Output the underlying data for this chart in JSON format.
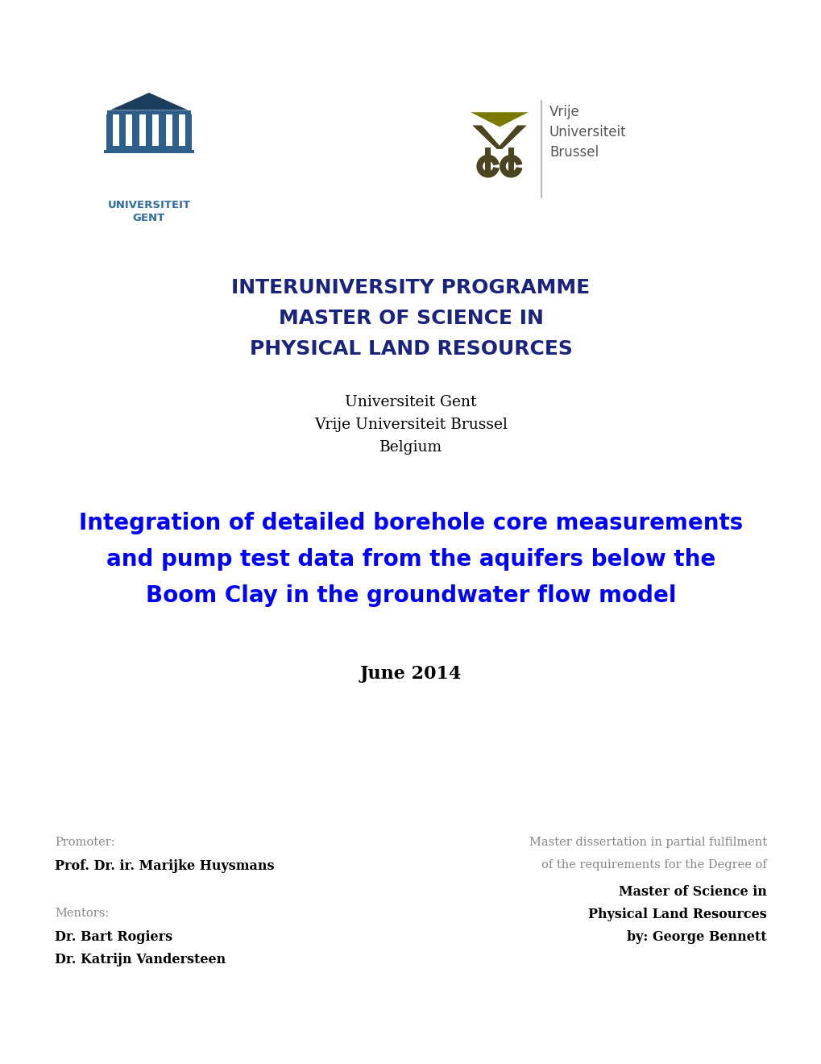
{
  "background_color": "#ffffff",
  "programme_line1": "INTERUNIVERSITY PROGRAMME",
  "programme_line2": "MASTER OF SCIENCE IN",
  "programme_line3": "PHYSICAL LAND RESOURCES",
  "programme_color": "#1a237e",
  "university_line1": "Universiteit Gent",
  "university_line2": "Vrije Universiteit Brussel",
  "university_line3": "Belgium",
  "university_color": "#000000",
  "thesis_title_line1": "Integration of detailed borehole core measurements",
  "thesis_title_line2": "and pump test data from the aquifers below the",
  "thesis_title_line3": "Boom Clay in the groundwater flow model",
  "thesis_title_color": "#0000ff",
  "date_text": "June 2014",
  "date_color": "#000000",
  "promoter_label": "Promoter:",
  "promoter_name": "Prof. Dr. ir. Marijke Huysmans",
  "mentors_label": "Mentors:",
  "mentor1": "Dr. Bart Rogiers",
  "mentor2": "Dr. Katrijn Vandersteen",
  "diss_line1": "Master dissertation in partial fulfilment",
  "diss_line2": "of the requirements for the Degree of",
  "diss_line3": "Master of Science in",
  "diss_line4": "Physical Land Resources",
  "diss_line5": "by: George Bennett",
  "ugent_color": "#4a6fa5",
  "ugent_label_color": "#2e6da4",
  "vub_olive": "#7a7a00",
  "vub_dark": "#4a4520",
  "vub_text_color": "#555555",
  "label_color": "#888888"
}
